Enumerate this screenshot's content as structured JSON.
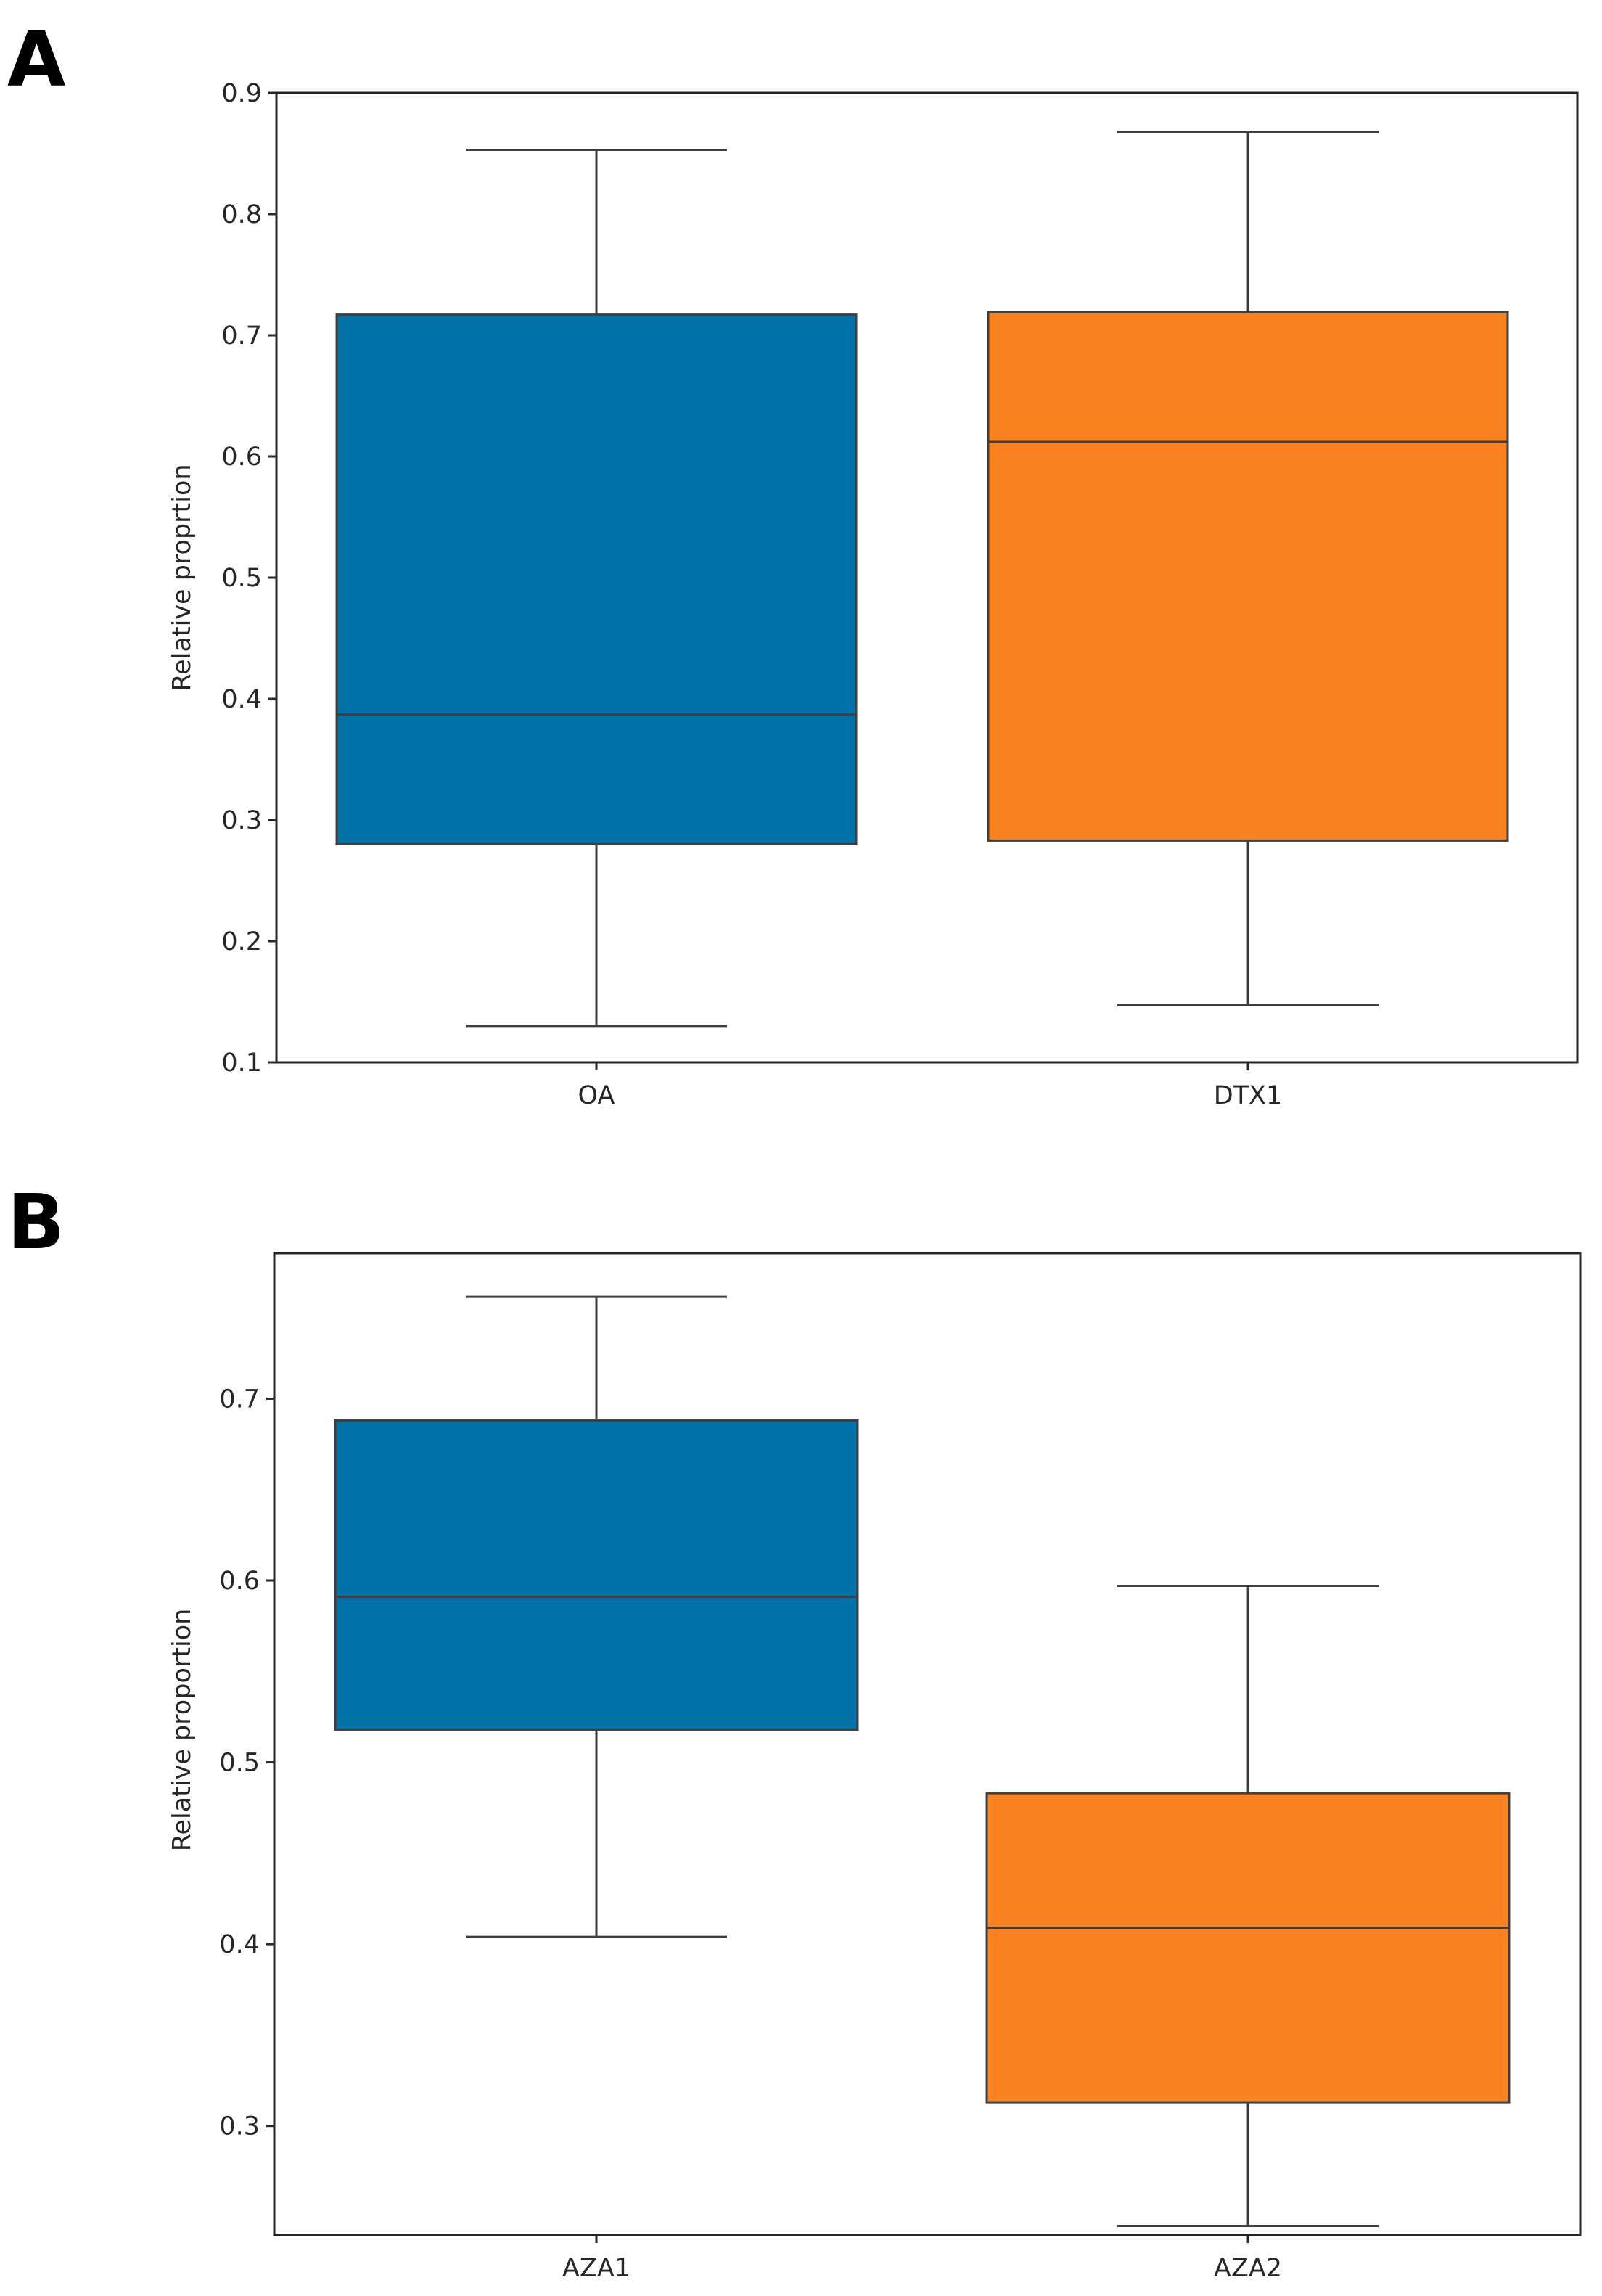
{
  "colors": {
    "box_blue": "#0072a8",
    "box_orange": "#fb8221",
    "line": "#3f3f3f",
    "frame": "#262626"
  },
  "chart_data": [
    {
      "type": "box",
      "panel_label": "A",
      "title": "",
      "xlabel": "",
      "ylabel": "Relative proprtion",
      "ylim": [
        0.1,
        0.9
      ],
      "yticks": [
        "0.1",
        "0.2",
        "0.3",
        "0.4",
        "0.5",
        "0.6",
        "0.7",
        "0.8",
        "0.9"
      ],
      "categories": [
        "OA",
        "DTX1"
      ],
      "boxes": [
        {
          "category": "OA",
          "whisker_low": 0.13,
          "q1": 0.28,
          "median": 0.387,
          "q3": 0.717,
          "whisker_high": 0.853,
          "color": "#0072a8"
        },
        {
          "category": "DTX1",
          "whisker_low": 0.147,
          "q1": 0.283,
          "median": 0.612,
          "q3": 0.719,
          "whisker_high": 0.868,
          "color": "#fb8221"
        }
      ]
    },
    {
      "type": "box",
      "panel_label": "B",
      "title": "",
      "xlabel": "",
      "ylabel": "Relative proportion",
      "ylim": [
        0.24,
        0.78
      ],
      "yticks": [
        "0.3",
        "0.4",
        "0.5",
        "0.6",
        "0.7"
      ],
      "categories": [
        "AZA1",
        "AZA2"
      ],
      "boxes": [
        {
          "category": "AZA1",
          "whisker_low": 0.404,
          "q1": 0.518,
          "median": 0.591,
          "q3": 0.688,
          "whisker_high": 0.756,
          "color": "#0072a8"
        },
        {
          "category": "AZA2",
          "whisker_low": 0.245,
          "q1": 0.313,
          "median": 0.409,
          "q3": 0.483,
          "whisker_high": 0.597,
          "color": "#fb8221"
        }
      ]
    }
  ]
}
